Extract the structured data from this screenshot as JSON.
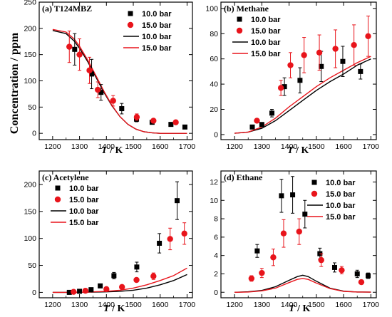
{
  "colors": {
    "black_series": "#000000",
    "red_series": "#e8141b"
  },
  "y_axis_label": "Concentration / ppm",
  "x_axis_label": {
    "italic_part": "T",
    "rest": " / K"
  },
  "chart_data": [
    {
      "type": "scatter",
      "title": "(a) T124MBZ",
      "xlim": [
        1150,
        1720
      ],
      "ylim": [
        -12,
        250
      ],
      "xticks": [
        1200,
        1300,
        1400,
        1500,
        1600,
        1700
      ],
      "yticks": [
        0,
        50,
        100,
        150,
        200,
        250
      ],
      "legend": [
        "10.0 bar",
        "15.0 bar",
        "10.0 bar",
        "15.0 bar"
      ],
      "legend_position": "top-right",
      "series": [
        {
          "name": "10.0 bar",
          "kind": "points",
          "color": "#000000",
          "marker": "square",
          "x": [
            1282,
            1345,
            1380,
            1457,
            1512,
            1570,
            1640,
            1692
          ],
          "y": [
            160,
            113,
            78,
            47,
            27,
            21,
            17,
            12
          ],
          "err": [
            30,
            28,
            15,
            10,
            5,
            3,
            3,
            3
          ]
        },
        {
          "name": "15.0 bar",
          "kind": "points",
          "color": "#e8141b",
          "marker": "circle",
          "x": [
            1262,
            1300,
            1337,
            1368,
            1425,
            1513,
            1575,
            1658
          ],
          "y": [
            165,
            150,
            120,
            83,
            62,
            31,
            24,
            21
          ],
          "err": [
            30,
            30,
            25,
            15,
            10,
            6,
            4,
            4
          ]
        },
        {
          "name": "10.0 bar",
          "kind": "line",
          "color": "#000000",
          "x": [
            1200,
            1250,
            1280,
            1300,
            1330,
            1360,
            1390,
            1420,
            1450,
            1480,
            1510,
            1540,
            1570,
            1600,
            1650,
            1700
          ],
          "y": [
            196,
            190,
            176,
            162,
            137,
            108,
            79,
            53,
            32,
            17,
            8,
            3,
            1,
            0,
            0,
            0
          ]
        },
        {
          "name": "15.0 bar",
          "kind": "line",
          "color": "#e8141b",
          "x": [
            1200,
            1250,
            1280,
            1300,
            1330,
            1360,
            1390,
            1420,
            1450,
            1480,
            1510,
            1540,
            1570,
            1600,
            1650,
            1700
          ],
          "y": [
            198,
            193,
            180,
            166,
            140,
            111,
            81,
            54,
            32,
            17,
            8,
            3,
            1,
            0,
            0,
            0
          ]
        }
      ]
    },
    {
      "type": "scatter",
      "title": "(b) Methane",
      "xlim": [
        1150,
        1720
      ],
      "ylim": [
        -4,
        105
      ],
      "xticks": [
        1200,
        1300,
        1400,
        1500,
        1600,
        1700
      ],
      "yticks": [
        0,
        20,
        40,
        60,
        80,
        100
      ],
      "legend": [
        "10.0 bar",
        "15.0 bar",
        "10.0 bar",
        "15.0 bar"
      ],
      "legend_position": "top-left",
      "series": [
        {
          "name": "10.0 bar",
          "kind": "points",
          "color": "#000000",
          "marker": "square",
          "x": [
            1265,
            1300,
            1337,
            1383,
            1440,
            1518,
            1597,
            1662
          ],
          "y": [
            6,
            8,
            17,
            38,
            43,
            54,
            58,
            50
          ],
          "err": [
            1,
            1.5,
            3,
            7,
            10,
            12,
            12,
            6
          ]
        },
        {
          "name": "15.0 bar",
          "kind": "points",
          "color": "#e8141b",
          "marker": "circle",
          "x": [
            1282,
            1370,
            1405,
            1455,
            1511,
            1570,
            1638,
            1690
          ],
          "y": [
            11,
            37,
            55,
            63,
            65,
            68,
            71,
            78
          ],
          "err": [
            1.5,
            6,
            10,
            14,
            14,
            15,
            16,
            16
          ]
        },
        {
          "name": "10.0 bar",
          "kind": "line",
          "color": "#000000",
          "x": [
            1200,
            1250,
            1300,
            1350,
            1400,
            1450,
            1500,
            1550,
            1600,
            1650,
            1700
          ],
          "y": [
            1,
            2,
            5,
            11,
            19,
            27,
            35,
            42,
            48,
            55,
            60
          ]
        },
        {
          "name": "15.0 bar",
          "kind": "line",
          "color": "#e8141b",
          "x": [
            1200,
            1250,
            1300,
            1350,
            1400,
            1450,
            1500,
            1550,
            1600,
            1650,
            1700
          ],
          "y": [
            1,
            2,
            6,
            13,
            22,
            30,
            38,
            45,
            51,
            57,
            62
          ]
        }
      ]
    },
    {
      "type": "scatter",
      "title": "(c) Acetylene",
      "xlim": [
        1150,
        1720
      ],
      "ylim": [
        -10,
        225
      ],
      "xticks": [
        1200,
        1300,
        1400,
        1500,
        1600,
        1700
      ],
      "yticks": [
        0,
        50,
        100,
        150,
        200
      ],
      "legend": [
        "10.0 bar",
        "15.0 bar",
        "10.0 bar",
        "15.0 bar"
      ],
      "legend_position": "top-left",
      "series": [
        {
          "name": "10.0 bar",
          "kind": "points",
          "color": "#000000",
          "marker": "square",
          "x": [
            1262,
            1300,
            1343,
            1377,
            1428,
            1513,
            1597,
            1663
          ],
          "y": [
            0,
            2,
            5,
            12,
            31,
            47,
            91,
            170
          ],
          "err": [
            1,
            1,
            2,
            2,
            6,
            9,
            18,
            35
          ]
        },
        {
          "name": "15.0 bar",
          "kind": "points",
          "color": "#e8141b",
          "marker": "circle",
          "x": [
            1278,
            1322,
            1400,
            1458,
            1512,
            1575,
            1637,
            1690
          ],
          "y": [
            1,
            3,
            6,
            10,
            23,
            30,
            99,
            109
          ],
          "err": [
            1,
            1,
            1,
            2,
            4,
            6,
            20,
            20
          ]
        },
        {
          "name": "10.0 bar",
          "kind": "line",
          "color": "#000000",
          "x": [
            1200,
            1300,
            1400,
            1450,
            1500,
            1550,
            1600,
            1650,
            1700
          ],
          "y": [
            0,
            0,
            1,
            2,
            4,
            8,
            14,
            22,
            33
          ]
        },
        {
          "name": "15.0 bar",
          "kind": "line",
          "color": "#e8141b",
          "x": [
            1200,
            1300,
            1400,
            1450,
            1500,
            1550,
            1600,
            1650,
            1700
          ],
          "y": [
            0,
            0,
            2,
            4,
            8,
            14,
            22,
            31,
            45
          ]
        }
      ]
    },
    {
      "type": "scatter",
      "title": "(d) Ethane",
      "xlim": [
        1150,
        1720
      ],
      "ylim": [
        -0.6,
        13.2
      ],
      "xticks": [
        1200,
        1300,
        1400,
        1500,
        1600,
        1700
      ],
      "yticks": [
        0,
        2,
        4,
        6,
        8,
        10,
        12
      ],
      "legend": [
        "10.0 bar",
        "15.0 bar",
        "10.0 bar",
        "15.0 bar"
      ],
      "legend_position": "top-right",
      "series": [
        {
          "name": "10.0 bar",
          "kind": "points",
          "color": "#000000",
          "marker": "square",
          "x": [
            1283,
            1372,
            1413,
            1458,
            1513,
            1567,
            1650,
            1690
          ],
          "y": [
            4.5,
            10.5,
            10.6,
            8.5,
            4.2,
            2.7,
            2.0,
            1.8
          ],
          "err": [
            0.7,
            1.8,
            2.0,
            1.5,
            0.6,
            0.5,
            0.4,
            0.3
          ]
        },
        {
          "name": "15.0 bar",
          "kind": "points",
          "color": "#e8141b",
          "marker": "circle",
          "x": [
            1262,
            1300,
            1342,
            1380,
            1437,
            1518,
            1593,
            1665
          ],
          "y": [
            1.5,
            2.1,
            3.8,
            6.4,
            6.6,
            3.5,
            2.4,
            1.1
          ],
          "err": [
            0.3,
            0.5,
            0.9,
            1.5,
            1.4,
            0.7,
            0.4,
            0.2
          ]
        },
        {
          "name": "10.0 bar",
          "kind": "line",
          "color": "#000000",
          "x": [
            1200,
            1250,
            1300,
            1350,
            1400,
            1430,
            1450,
            1470,
            1500,
            1550,
            1600,
            1650,
            1700
          ],
          "y": [
            0,
            0.05,
            0.2,
            0.6,
            1.3,
            1.7,
            1.85,
            1.7,
            1.2,
            0.45,
            0.12,
            0.03,
            0.01
          ]
        },
        {
          "name": "15.0 bar",
          "kind": "line",
          "color": "#e8141b",
          "x": [
            1200,
            1250,
            1300,
            1350,
            1400,
            1430,
            1450,
            1470,
            1500,
            1550,
            1600,
            1650,
            1700
          ],
          "y": [
            0,
            0.03,
            0.15,
            0.45,
            1.05,
            1.4,
            1.5,
            1.4,
            1.0,
            0.4,
            0.1,
            0.03,
            0.01
          ]
        }
      ]
    }
  ]
}
